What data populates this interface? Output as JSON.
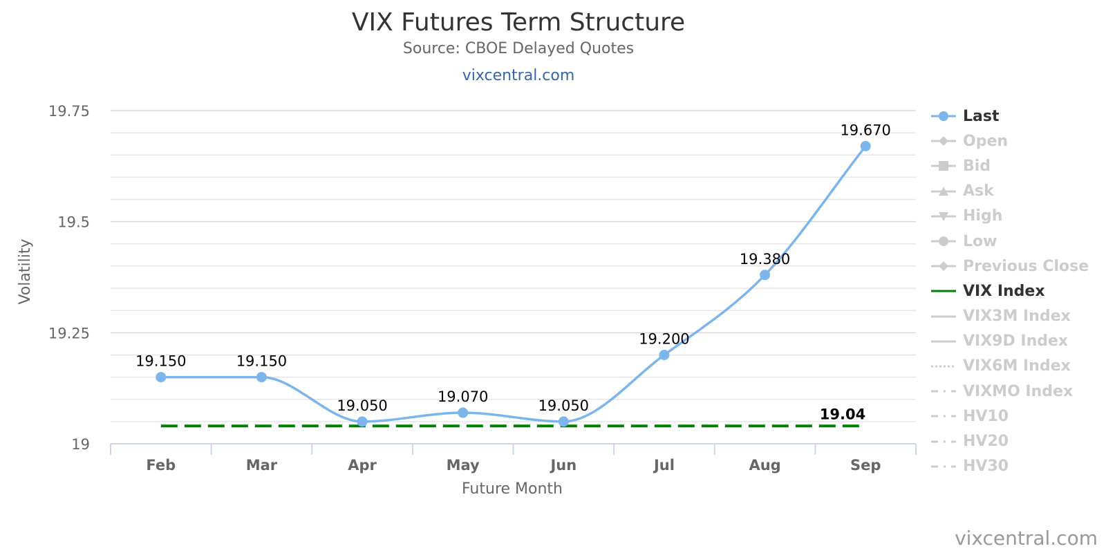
{
  "chart_data": {
    "type": "line",
    "title": "VIX Futures Term Structure",
    "subtitle": "Source: CBOE Delayed Quotes",
    "site_link": "vixcentral.com",
    "credit": "vixcentral.com",
    "xlabel": "Future Month",
    "ylabel": "Volatility",
    "categories": [
      "Feb",
      "Mar",
      "Apr",
      "May",
      "Jun",
      "Jul",
      "Aug",
      "Sep"
    ],
    "ylim": [
      19,
      19.75
    ],
    "yticks": [
      19,
      19.25,
      19.5,
      19.75
    ],
    "ytick_labels": [
      "19",
      "19.25",
      "19.5",
      "19.75"
    ],
    "grid": true,
    "legend_position": "right",
    "series": [
      {
        "name": "Last",
        "values": [
          19.15,
          19.15,
          19.05,
          19.07,
          19.05,
          19.2,
          19.38,
          19.67
        ],
        "data_labels": [
          "19.150",
          "19.150",
          "19.050",
          "19.070",
          "19.050",
          "19.200",
          "19.380",
          "19.670"
        ],
        "color": "#7cb5ec",
        "style": "smooth-line-markers"
      },
      {
        "name": "VIX Index",
        "values": [
          19.04,
          19.04,
          19.04,
          19.04,
          19.04,
          19.04,
          19.04,
          19.04
        ],
        "end_label": "19.04",
        "color": "#008000",
        "style": "dashed"
      }
    ]
  },
  "legend": [
    {
      "name": "Last",
      "visible": true,
      "symbol": "circle-line",
      "color": "#7cb5ec"
    },
    {
      "name": "Open",
      "visible": false,
      "symbol": "diamond-line",
      "color": "#cccccc"
    },
    {
      "name": "Bid",
      "visible": false,
      "symbol": "square-line",
      "color": "#cccccc"
    },
    {
      "name": "Ask",
      "visible": false,
      "symbol": "triangle-line",
      "color": "#cccccc"
    },
    {
      "name": "High",
      "visible": false,
      "symbol": "triangle-down-line",
      "color": "#cccccc"
    },
    {
      "name": "Low",
      "visible": false,
      "symbol": "circle-line",
      "color": "#cccccc"
    },
    {
      "name": "Previous Close",
      "visible": false,
      "symbol": "diamond-line",
      "color": "#cccccc"
    },
    {
      "name": "VIX Index",
      "visible": true,
      "symbol": "line",
      "color": "#008000"
    },
    {
      "name": "VIX3M Index",
      "visible": false,
      "symbol": "line",
      "color": "#cccccc"
    },
    {
      "name": "VIX9D Index",
      "visible": false,
      "symbol": "line",
      "color": "#cccccc"
    },
    {
      "name": "VIX6M Index",
      "visible": false,
      "symbol": "dotted",
      "color": "#cccccc"
    },
    {
      "name": "VIXMO Index",
      "visible": false,
      "symbol": "dash-dot",
      "color": "#cccccc"
    },
    {
      "name": "HV10",
      "visible": false,
      "symbol": "dash-dot",
      "color": "#cccccc"
    },
    {
      "name": "HV20",
      "visible": false,
      "symbol": "dash-dot",
      "color": "#cccccc"
    },
    {
      "name": "HV30",
      "visible": false,
      "symbol": "dash-dot",
      "color": "#cccccc"
    }
  ]
}
